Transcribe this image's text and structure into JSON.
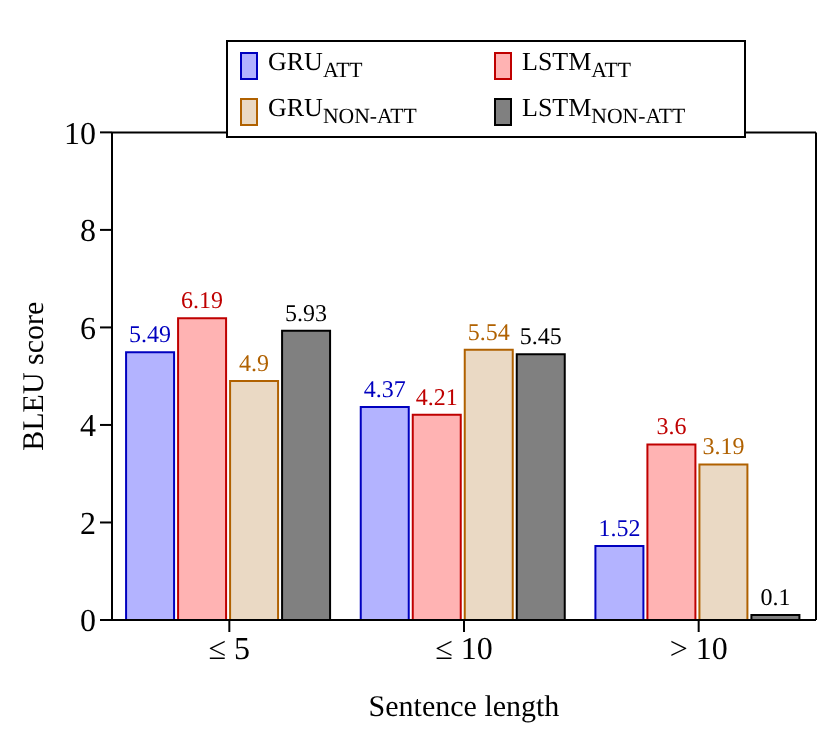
{
  "chart_data": {
    "type": "bar",
    "xlabel": "Sentence length",
    "ylabel": "BLEU score",
    "categories": [
      "≤ 5",
      "≤ 10",
      "> 10"
    ],
    "series": [
      {
        "name": "GRU$_{ATT}$",
        "color": "#b3b3ff",
        "values": [
          5.49,
          4.37,
          1.52
        ]
      },
      {
        "name": "LSTM$_{ATT}$",
        "color": "#ffb3b3",
        "values": [
          6.19,
          4.21,
          3.6
        ]
      },
      {
        "name": "GRU$_{NON-ATT}$",
        "color": "#ead9c4",
        "values": [
          4.9,
          5.54,
          3.19
        ]
      },
      {
        "name": "LSTM$_{NON-ATT}$",
        "color": "#808080",
        "values": [
          5.93,
          5.45,
          0.1
        ]
      }
    ],
    "ylim": [
      0,
      10
    ],
    "yticks": [
      0,
      2,
      4,
      6,
      8,
      10
    ],
    "grid": false,
    "legend": "top",
    "data_labels": true
  }
}
